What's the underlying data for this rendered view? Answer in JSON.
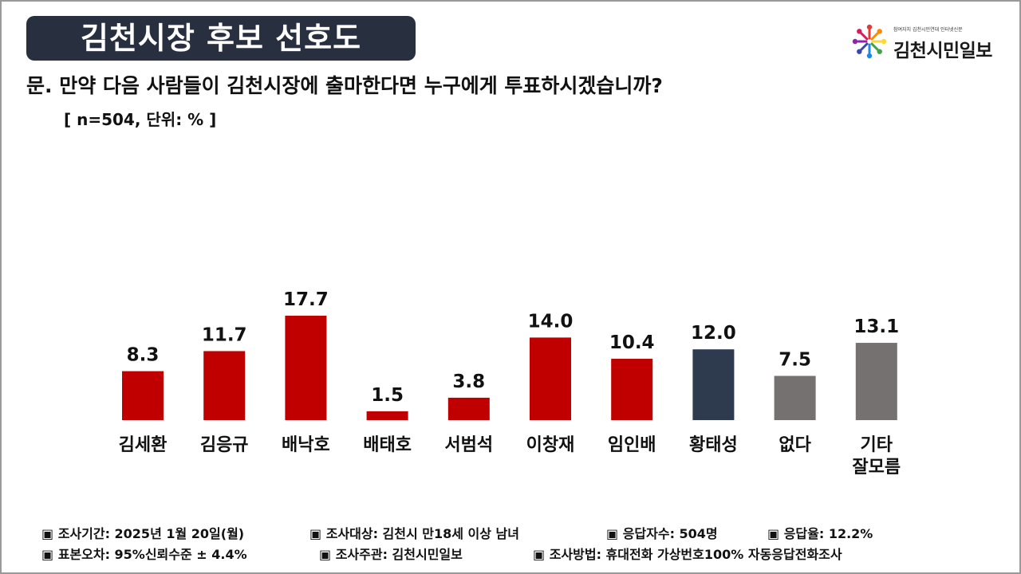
{
  "header": {
    "title": "김천시장 후보 선호도",
    "question": "문. 만약 다음 사람들이 김천시장에 출마한다면 누구에게 투표하시겠습니까?",
    "sample_note": "[ n=504, 단위: % ]"
  },
  "logo": {
    "small_text": "참여자치 김천시민연대  인터넷신문",
    "name": "김천시민일보",
    "icon": "colorful-people-circle-icon"
  },
  "colors": {
    "title_bg": "#283040",
    "candidate": "#C00000",
    "navy": "#2E3A4E",
    "gray": "#767171"
  },
  "chart_data": {
    "type": "bar",
    "title": "",
    "xlabel": "",
    "ylabel": "",
    "unit": "%",
    "ylim": [
      0,
      20
    ],
    "grid": false,
    "categories": [
      "김세환",
      "김응규",
      "배낙호",
      "배태호",
      "서범석",
      "이창재",
      "임인배",
      "황태성",
      "없다",
      "기타\n잘모름"
    ],
    "values": [
      8.3,
      11.7,
      17.7,
      1.5,
      3.8,
      14.0,
      10.4,
      12.0,
      7.5,
      13.1
    ],
    "value_labels": [
      "8.3",
      "11.7",
      "17.7",
      "1.5",
      "3.8",
      "14.0",
      "10.4",
      "12.0",
      "7.5",
      "13.1"
    ],
    "bar_colors": [
      "#C00000",
      "#C00000",
      "#C00000",
      "#C00000",
      "#C00000",
      "#C00000",
      "#C00000",
      "#2E3A4E",
      "#767171",
      "#767171"
    ]
  },
  "footer": {
    "row1": [
      "▣ 조사기간: 2025년 1월 20일(월)",
      "▣ 조사대상: 김천시 만18세 이상 남녀",
      "▣ 응답자수: 504명",
      "▣ 응답율: 12.2%"
    ],
    "row2": [
      "▣ 표본오차: 95%신뢰수준 ± 4.4%",
      "▣ 조사주관: 김천시민일보",
      "▣ 조사방법: 휴대전화 가상번호100% 자동응답전화조사"
    ]
  }
}
